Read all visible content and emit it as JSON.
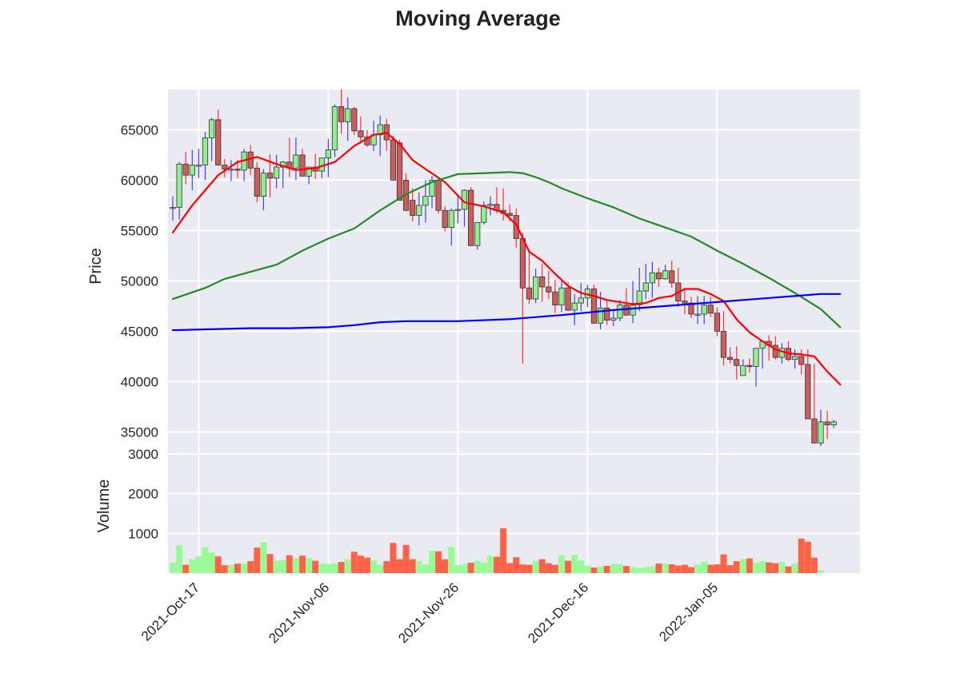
{
  "chart_data": {
    "type": "candlestick",
    "title": "Moving Average",
    "panels": {
      "price": {
        "ylabel": "Price",
        "ylim": [
          34000,
          69000
        ],
        "yticks": [
          35000,
          40000,
          45000,
          50000,
          55000,
          60000,
          65000
        ],
        "background": "#eaeaf2",
        "grid": true
      },
      "volume": {
        "ylabel": "Volume",
        "ylim": [
          0,
          3300
        ],
        "yticks": [
          1000,
          2000,
          3000
        ],
        "up_color": "#98fb98",
        "down_color": "#ff6347",
        "background": "#eaeaf2",
        "grid": true
      }
    },
    "x_ticks": [
      "2021-Oct-17",
      "2021-Nov-06",
      "2021-Nov-26",
      "2021-Dec-16",
      "2022-Jan-05"
    ],
    "candles": {
      "start_date": "2021-Oct-13",
      "open": [
        57300,
        57300,
        61600,
        60500,
        61500,
        61500,
        64200,
        66000,
        61500,
        61100,
        61100,
        61000,
        62800,
        61200,
        58400,
        60700,
        60200,
        61300,
        61800,
        61200,
        62500,
        60400,
        61300,
        60900,
        62200,
        63000,
        67300,
        65800,
        67100,
        64900,
        64300,
        63500,
        64500,
        65500,
        64000,
        63700,
        60000,
        58000,
        56500,
        57500,
        58400,
        60000,
        57000,
        55300,
        57000,
        57100,
        59000,
        53500,
        55800,
        57500,
        57600,
        57000,
        56700,
        56500,
        54200,
        49300,
        48200,
        50400,
        49400,
        48900,
        47600,
        49300,
        47100,
        47800,
        48300,
        49200,
        45800,
        47300,
        46100,
        46300,
        47600,
        46600,
        47600,
        49000,
        49800,
        50800,
        50200,
        51000,
        49800,
        48000,
        47800,
        46700,
        46700,
        47600,
        46800,
        45000,
        42400,
        42200,
        40600,
        41600,
        41500,
        43300,
        44000,
        43600,
        42400,
        43300,
        42200,
        42500,
        41700,
        36300,
        33900,
        36000,
        35700
      ],
      "high": [
        58400,
        61800,
        62800,
        63000,
        63100,
        64800,
        66200,
        67000,
        62100,
        62000,
        62000,
        63100,
        63500,
        61800,
        61100,
        62600,
        62500,
        61900,
        64200,
        64200,
        63100,
        61100,
        62600,
        62200,
        64100,
        67500,
        69000,
        68200,
        67300,
        66300,
        65000,
        65900,
        66400,
        66100,
        64400,
        64000,
        60700,
        59200,
        58800,
        60000,
        60400,
        60300,
        57400,
        57200,
        58500,
        59100,
        59300,
        55800,
        57900,
        58400,
        59300,
        59200,
        57600,
        57200,
        54800,
        53100,
        51200,
        51700,
        51000,
        50100,
        50200,
        49900,
        48700,
        49800,
        49600,
        49600,
        48900,
        48000,
        47200,
        48100,
        49300,
        50000,
        51300,
        51700,
        51900,
        51300,
        51600,
        52000,
        51300,
        49200,
        48400,
        48500,
        48500,
        48400,
        47400,
        47000,
        43400,
        43500,
        42200,
        42300,
        42700,
        44000,
        44600,
        44500,
        43800,
        44000,
        43200,
        43200,
        43200,
        41800,
        37200,
        37100,
        36200
      ],
      "low": [
        56000,
        56100,
        59600,
        59000,
        60200,
        60000,
        61900,
        64300,
        60300,
        59900,
        60200,
        59900,
        60500,
        57800,
        57000,
        58300,
        59200,
        59200,
        60300,
        60000,
        60700,
        59600,
        60100,
        60200,
        60300,
        62300,
        64600,
        63900,
        64500,
        63800,
        63300,
        62900,
        62400,
        62900,
        60100,
        58800,
        56900,
        55900,
        55500,
        55800,
        57200,
        56700,
        54900,
        53500,
        55700,
        55400,
        53500,
        53100,
        55600,
        56500,
        56700,
        56000,
        55900,
        53300,
        41800,
        47700,
        47800,
        47900,
        48200,
        46800,
        46900,
        47000,
        45600,
        47000,
        47400,
        45900,
        45200,
        45600,
        45500,
        46000,
        46700,
        45800,
        47000,
        48200,
        48300,
        49400,
        50100,
        49300,
        47400,
        46700,
        46300,
        45700,
        45700,
        46400,
        44500,
        41600,
        41800,
        40200,
        40600,
        40900,
        39500,
        41300,
        42100,
        42200,
        41800,
        42000,
        41300,
        40700,
        38800,
        34800,
        33600,
        34300,
        35400
      ],
      "close": [
        57300,
        61600,
        60500,
        61500,
        61500,
        64200,
        66000,
        61500,
        61100,
        61100,
        61000,
        62800,
        61200,
        58400,
        60700,
        60200,
        61300,
        61800,
        61200,
        62500,
        60400,
        61300,
        60900,
        62200,
        63000,
        67300,
        65800,
        67100,
        64900,
        64300,
        63500,
        64500,
        65500,
        64000,
        60000,
        58000,
        57000,
        56500,
        57500,
        58400,
        60000,
        57000,
        55300,
        57000,
        57100,
        59000,
        53500,
        55800,
        57500,
        57600,
        57000,
        56700,
        56500,
        54200,
        49300,
        48200,
        50400,
        49400,
        48900,
        47600,
        49300,
        47100,
        47800,
        48300,
        49200,
        45800,
        47300,
        46100,
        46300,
        47600,
        46600,
        47600,
        49000,
        49800,
        50800,
        50200,
        51000,
        49800,
        48000,
        47800,
        46700,
        46700,
        47600,
        46800,
        45000,
        42400,
        42200,
        41600,
        41600,
        41500,
        43300,
        44000,
        43600,
        42400,
        43300,
        42200,
        42500,
        41700,
        36300,
        33900,
        36000,
        35700,
        36000
      ],
      "volume": [
        260,
        710,
        210,
        350,
        420,
        650,
        520,
        420,
        200,
        210,
        240,
        240,
        300,
        640,
        780,
        480,
        310,
        330,
        450,
        380,
        440,
        380,
        310,
        240,
        230,
        240,
        280,
        350,
        540,
        440,
        390,
        320,
        210,
        300,
        760,
        350,
        710,
        350,
        300,
        220,
        560,
        550,
        350,
        660,
        200,
        230,
        260,
        310,
        260,
        440,
        410,
        1130,
        250,
        400,
        220,
        210,
        310,
        350,
        250,
        210,
        450,
        310,
        460,
        320,
        190,
        140,
        170,
        180,
        230,
        230,
        180,
        150,
        130,
        150,
        170,
        240,
        230,
        220,
        190,
        210,
        150,
        220,
        290,
        210,
        220,
        470,
        200,
        300,
        350,
        370,
        260,
        300,
        270,
        250,
        280,
        170,
        240,
        870,
        790,
        390,
        80,
        0,
        0
      ]
    },
    "series": [
      {
        "name": "",
        "color": "#ff0000",
        "points": [
          [
            0,
            54800
          ],
          [
            3,
            57500
          ],
          [
            5,
            59000
          ],
          [
            7,
            60500
          ],
          [
            10,
            61800
          ],
          [
            13,
            62300
          ],
          [
            16,
            61600
          ],
          [
            19,
            61000
          ],
          [
            22,
            61200
          ],
          [
            25,
            61800
          ],
          [
            28,
            63400
          ],
          [
            31,
            64500
          ],
          [
            33,
            64700
          ],
          [
            35,
            63600
          ],
          [
            37,
            62000
          ],
          [
            39,
            61100
          ],
          [
            42,
            59800
          ],
          [
            45,
            57800
          ],
          [
            48,
            57400
          ],
          [
            51,
            56800
          ],
          [
            53,
            55600
          ],
          [
            55,
            52900
          ],
          [
            57,
            52000
          ],
          [
            59,
            50700
          ],
          [
            61,
            49500
          ],
          [
            63,
            48800
          ],
          [
            65,
            48500
          ],
          [
            67,
            48100
          ],
          [
            69,
            47900
          ],
          [
            71,
            47700
          ],
          [
            73,
            47800
          ],
          [
            75,
            48300
          ],
          [
            77,
            48500
          ],
          [
            79,
            49200
          ],
          [
            81,
            49200
          ],
          [
            83,
            48700
          ],
          [
            85,
            48000
          ],
          [
            87,
            46200
          ],
          [
            89,
            44900
          ],
          [
            91,
            44000
          ],
          [
            93,
            43200
          ],
          [
            95,
            42800
          ],
          [
            97,
            42700
          ],
          [
            99,
            42500
          ],
          [
            101,
            41000
          ],
          [
            103,
            39700
          ]
        ]
      },
      {
        "name": "",
        "color": "#228b22",
        "points": [
          [
            0,
            48200
          ],
          [
            5,
            49300
          ],
          [
            8,
            50200
          ],
          [
            12,
            50900
          ],
          [
            16,
            51600
          ],
          [
            20,
            53000
          ],
          [
            24,
            54200
          ],
          [
            28,
            55200
          ],
          [
            32,
            57000
          ],
          [
            36,
            58600
          ],
          [
            40,
            59800
          ],
          [
            44,
            60600
          ],
          [
            48,
            60700
          ],
          [
            52,
            60800
          ],
          [
            54,
            60700
          ],
          [
            56,
            60300
          ],
          [
            58,
            59800
          ],
          [
            60,
            59200
          ],
          [
            64,
            58200
          ],
          [
            68,
            57300
          ],
          [
            72,
            56200
          ],
          [
            76,
            55300
          ],
          [
            80,
            54400
          ],
          [
            84,
            53000
          ],
          [
            88,
            51700
          ],
          [
            92,
            50300
          ],
          [
            96,
            48800
          ],
          [
            100,
            47200
          ],
          [
            103,
            45400
          ]
        ]
      },
      {
        "name": "",
        "color": "#0000ff",
        "points": [
          [
            0,
            45100
          ],
          [
            6,
            45200
          ],
          [
            12,
            45300
          ],
          [
            18,
            45300
          ],
          [
            24,
            45400
          ],
          [
            28,
            45600
          ],
          [
            32,
            45900
          ],
          [
            36,
            46000
          ],
          [
            44,
            46000
          ],
          [
            52,
            46200
          ],
          [
            60,
            46600
          ],
          [
            68,
            47100
          ],
          [
            76,
            47500
          ],
          [
            84,
            47900
          ],
          [
            92,
            48300
          ],
          [
            100,
            48700
          ],
          [
            103,
            48700
          ]
        ]
      }
    ]
  }
}
